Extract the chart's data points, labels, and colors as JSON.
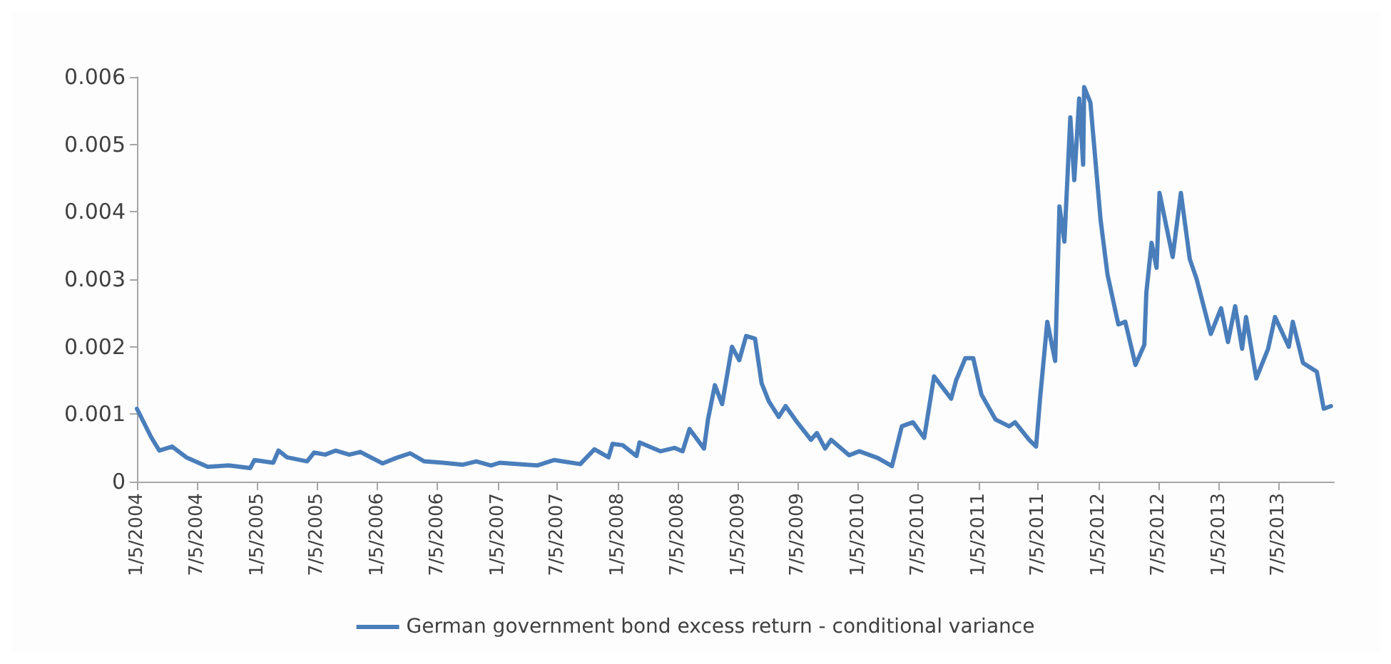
{
  "chart_data": {
    "type": "line",
    "xlim": [
      "2004-01-05",
      "2013-12-20"
    ],
    "xticks": [
      {
        "value": "2004-01-05",
        "label": "1/5/2004"
      },
      {
        "value": "2004-07-05",
        "label": "7/5/2004"
      },
      {
        "value": "2005-01-05",
        "label": "1/5/2005"
      },
      {
        "value": "2005-07-05",
        "label": "7/5/2005"
      },
      {
        "value": "2006-01-05",
        "label": "1/5/2006"
      },
      {
        "value": "2006-07-05",
        "label": "7/5/2006"
      },
      {
        "value": "2007-01-05",
        "label": "1/5/2007"
      },
      {
        "value": "2007-07-05",
        "label": "7/5/2007"
      },
      {
        "value": "2008-01-05",
        "label": "1/5/2008"
      },
      {
        "value": "2008-07-05",
        "label": "7/5/2008"
      },
      {
        "value": "2009-01-05",
        "label": "1/5/2009"
      },
      {
        "value": "2009-07-05",
        "label": "7/5/2009"
      },
      {
        "value": "2010-01-05",
        "label": "1/5/2010"
      },
      {
        "value": "2010-07-05",
        "label": "7/5/2010"
      },
      {
        "value": "2011-01-05",
        "label": "1/5/2011"
      },
      {
        "value": "2011-07-05",
        "label": "7/5/2011"
      },
      {
        "value": "2012-01-05",
        "label": "1/5/2012"
      },
      {
        "value": "2012-07-05",
        "label": "7/5/2012"
      },
      {
        "value": "2013-01-05",
        "label": "1/5/2013"
      },
      {
        "value": "2013-07-05",
        "label": "7/5/2013"
      }
    ],
    "ylim": [
      0,
      0.006
    ],
    "yticks": [
      0,
      0.001,
      0.002,
      0.003,
      0.004,
      0.005,
      0.006
    ],
    "grid": false,
    "legend": "bottom",
    "marker": "none",
    "line_style": "solid",
    "x": [
      "2004-01-05",
      "2004-02-17",
      "2004-03-13",
      "2004-04-21",
      "2004-06-03",
      "2004-08-07",
      "2004-10-10",
      "2004-12-14",
      "2004-12-27",
      "2005-02-22",
      "2005-03-10",
      "2005-04-05",
      "2005-06-05",
      "2005-06-26",
      "2005-07-30",
      "2005-08-30",
      "2005-10-11",
      "2005-11-14",
      "2006-01-20",
      "2006-03-02",
      "2006-04-14",
      "2006-05-27",
      "2006-07-23",
      "2006-09-20",
      "2006-11-01",
      "2006-12-16",
      "2007-01-11",
      "2007-03-11",
      "2007-05-05",
      "2007-06-26",
      "2007-09-13",
      "2007-10-26",
      "2007-12-08",
      "2007-12-20",
      "2008-01-20",
      "2008-03-02",
      "2008-03-11",
      "2008-05-14",
      "2008-06-26",
      "2008-07-20",
      "2008-08-10",
      "2008-09-23",
      "2008-10-05",
      "2008-10-26",
      "2008-11-17",
      "2008-12-17",
      "2009-01-08",
      "2009-01-29",
      "2009-02-25",
      "2009-03-17",
      "2009-04-08",
      "2009-05-08",
      "2009-05-29",
      "2009-07-03",
      "2009-08-14",
      "2009-09-01",
      "2009-09-26",
      "2009-10-14",
      "2009-12-08",
      "2010-01-08",
      "2010-03-05",
      "2010-04-17",
      "2010-05-17",
      "2010-06-20",
      "2010-07-24",
      "2010-08-23",
      "2010-10-14",
      "2010-10-29",
      "2010-11-26",
      "2010-12-20",
      "2011-01-14",
      "2011-02-26",
      "2011-04-08",
      "2011-04-26",
      "2011-06-08",
      "2011-06-29",
      "2011-07-11",
      "2011-08-02",
      "2011-08-26",
      "2011-09-08",
      "2011-09-23",
      "2011-10-11",
      "2011-10-23",
      "2011-11-07",
      "2011-11-19",
      "2011-11-22",
      "2011-12-11",
      "2012-01-11",
      "2012-02-01",
      "2012-03-05",
      "2012-03-26",
      "2012-04-26",
      "2012-05-23",
      "2012-05-29",
      "2012-06-14",
      "2012-06-29",
      "2012-07-08",
      "2012-08-17",
      "2012-09-11",
      "2012-10-08",
      "2012-10-29",
      "2012-12-11",
      "2013-01-11",
      "2013-02-01",
      "2013-02-23",
      "2013-03-16",
      "2013-03-28",
      "2013-04-28",
      "2013-06-03",
      "2013-06-24",
      "2013-08-05",
      "2013-08-17",
      "2013-09-17",
      "2013-10-29",
      "2013-11-19",
      "2013-12-11"
    ],
    "series": [
      {
        "name": "German government bond excess return - conditional variance",
        "color": "#4a7ebb",
        "values": [
          0.00108,
          0.00066,
          0.00046,
          0.00052,
          0.00036,
          0.00022,
          0.00024,
          0.0002,
          0.00032,
          0.00028,
          0.00046,
          0.00036,
          0.0003,
          0.00043,
          0.0004,
          0.00046,
          0.0004,
          0.00044,
          0.00027,
          0.00035,
          0.00042,
          0.0003,
          0.00028,
          0.00025,
          0.0003,
          0.00024,
          0.00028,
          0.00026,
          0.00024,
          0.00032,
          0.00026,
          0.00048,
          0.00036,
          0.00056,
          0.00054,
          0.00038,
          0.00058,
          0.00045,
          0.0005,
          0.00045,
          0.00078,
          0.00049,
          0.00092,
          0.00143,
          0.00115,
          0.002,
          0.0018,
          0.00216,
          0.00212,
          0.00146,
          0.00119,
          0.00096,
          0.00112,
          0.00088,
          0.00062,
          0.00072,
          0.00049,
          0.00062,
          0.00039,
          0.00045,
          0.00035,
          0.00023,
          0.00082,
          0.00088,
          0.00065,
          0.00156,
          0.00123,
          0.0015,
          0.00183,
          0.00183,
          0.00129,
          0.00092,
          0.00082,
          0.00088,
          0.00062,
          0.00052,
          0.00123,
          0.00237,
          0.00179,
          0.00408,
          0.00356,
          0.0054,
          0.00447,
          0.00568,
          0.0047,
          0.00585,
          0.00562,
          0.00388,
          0.00307,
          0.00233,
          0.00237,
          0.00173,
          0.00203,
          0.0028,
          0.00354,
          0.00317,
          0.00428,
          0.00333,
          0.00428,
          0.0033,
          0.003,
          0.00219,
          0.00257,
          0.00207,
          0.0026,
          0.00197,
          0.00244,
          0.00153,
          0.00197,
          0.00244,
          0.002,
          0.00237,
          0.00176,
          0.00163,
          0.00108,
          0.00112
        ]
      }
    ]
  }
}
